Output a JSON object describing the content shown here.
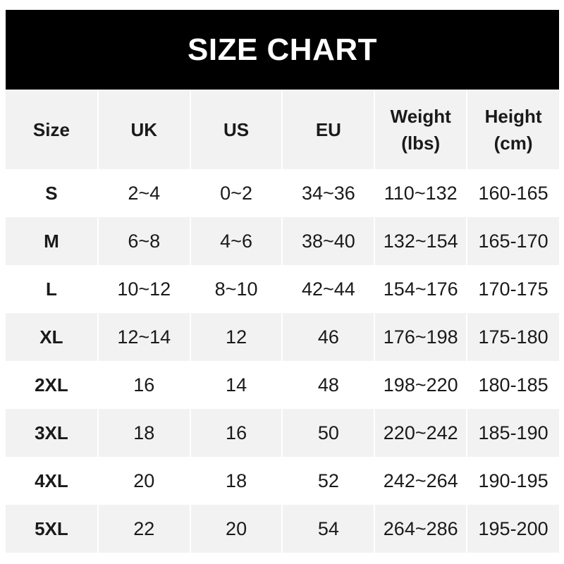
{
  "title": "SIZE CHART",
  "headers": [
    "Size",
    "UK",
    "US",
    "EU",
    "Weight\n(lbs)",
    "Height\n(cm)"
  ],
  "header_lines": [
    [
      "Size"
    ],
    [
      "UK"
    ],
    [
      "US"
    ],
    [
      "EU"
    ],
    [
      "Weight",
      "(lbs)"
    ],
    [
      "Height",
      "(cm)"
    ]
  ],
  "rows": [
    [
      "S",
      "2~4",
      "0~2",
      "34~36",
      "110~132",
      "160-165"
    ],
    [
      "M",
      "6~8",
      "4~6",
      "38~40",
      "132~154",
      "165-170"
    ],
    [
      "L",
      "10~12",
      "8~10",
      "42~44",
      "154~176",
      "170-175"
    ],
    [
      "XL",
      "12~14",
      "12",
      "46",
      "176~198",
      "175-180"
    ],
    [
      "2XL",
      "16",
      "14",
      "48",
      "198~220",
      "180-185"
    ],
    [
      "3XL",
      "18",
      "16",
      "50",
      "220~242",
      "185-190"
    ],
    [
      "4XL",
      "20",
      "18",
      "52",
      "242~264",
      "190-195"
    ],
    [
      "5XL",
      "22",
      "20",
      "54",
      "264~286",
      "195-200"
    ]
  ],
  "colors": {
    "title_bg": "#000000",
    "stripe": "#f2f2f2"
  }
}
